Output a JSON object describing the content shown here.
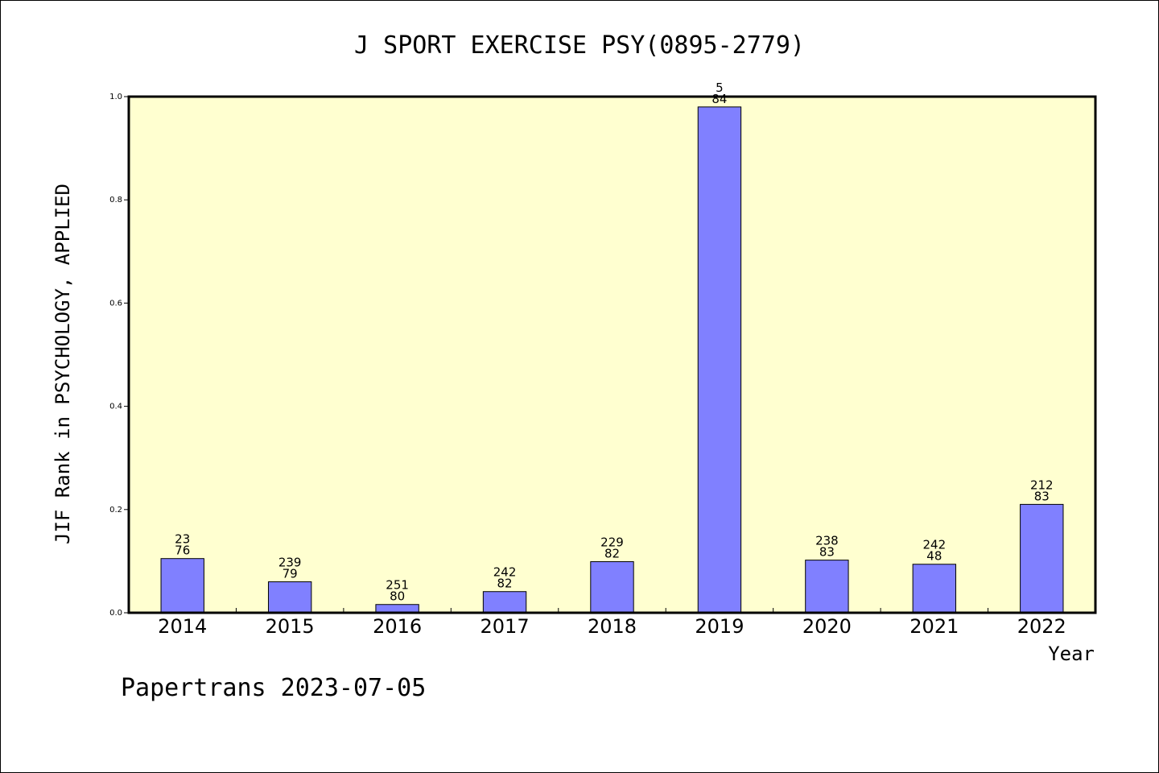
{
  "chart_data": {
    "type": "bar",
    "title": "J SPORT EXERCISE PSY(0895-2779)",
    "xlabel": "Year",
    "ylabel": "JIF Rank in PSYCHOLOGY, APPLIED",
    "ylim": [
      0,
      1.0
    ],
    "yticks": [
      "0.0",
      "0.2",
      "0.4",
      "0.6",
      "0.8",
      "1.0"
    ],
    "categories": [
      "2014",
      "2015",
      "2016",
      "2017",
      "2018",
      "2019",
      "2020",
      "2021",
      "2022"
    ],
    "values": [
      0.105,
      0.06,
      0.016,
      0.041,
      0.099,
      0.98,
      0.102,
      0.094,
      0.21
    ],
    "data_labels_top": [
      "23",
      "239",
      "251",
      "242",
      "229",
      "5",
      "238",
      "242",
      "212"
    ],
    "data_labels_bottom": [
      "76",
      "79",
      "80",
      "82",
      "82",
      "84",
      "83",
      "48",
      "83"
    ],
    "bar_color": "#8080ff",
    "plot_background": "#ffffd0",
    "grid": false
  },
  "footer": "Papertrans 2023-07-05"
}
